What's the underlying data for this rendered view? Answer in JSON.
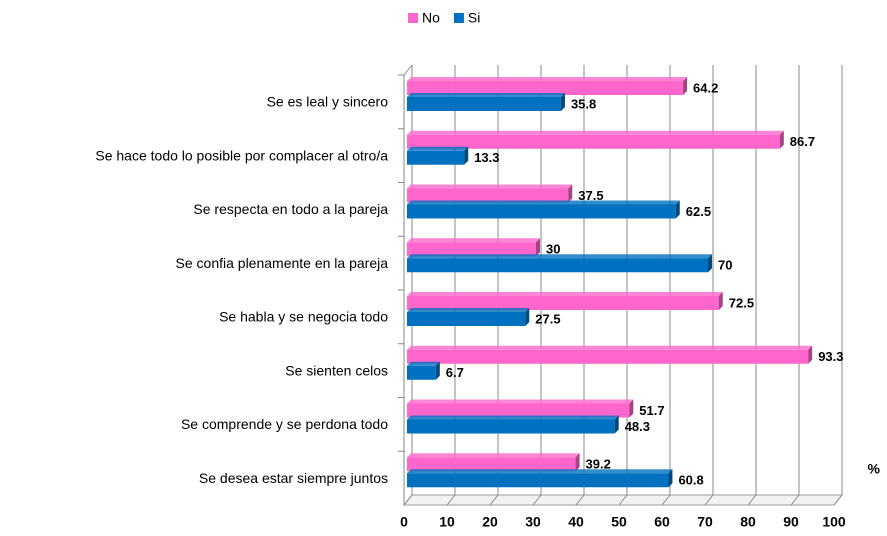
{
  "chart_data": {
    "type": "bar",
    "orientation": "horizontal",
    "categories": [
      "Se es leal y sincero",
      "Se hace todo lo posible por complacer al otro/a",
      "Se respecta en todo a la pareja",
      "Se confia plenamente en la pareja",
      "Se habla y se negocia todo",
      "Se sienten celos",
      "Se comprende y se perdona todo",
      "Se desea estar siempre juntos"
    ],
    "series": [
      {
        "name": "No",
        "color": "#ff66cc",
        "values": [
          64.2,
          86.7,
          37.5,
          30,
          72.5,
          93.3,
          51.7,
          39.2
        ]
      },
      {
        "name": "Si",
        "color": "#0070c0",
        "values": [
          35.8,
          13.3,
          62.5,
          70,
          27.5,
          6.7,
          48.3,
          60.8
        ]
      }
    ],
    "x_label": "%",
    "xlim": [
      0,
      100
    ],
    "xticks": [
      0,
      10,
      20,
      30,
      40,
      50,
      60,
      70,
      80,
      90,
      100
    ],
    "grid": true,
    "legend": "top"
  }
}
